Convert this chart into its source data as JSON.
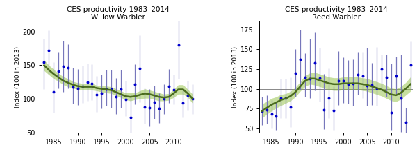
{
  "willow": {
    "title_line1": "CES productivity 1983–2014",
    "title_line2": "Willow Warbler",
    "years": [
      1983,
      1984,
      1985,
      1986,
      1987,
      1988,
      1989,
      1990,
      1991,
      1992,
      1993,
      1994,
      1995,
      1996,
      1997,
      1998,
      1999,
      2000,
      2001,
      2002,
      2003,
      2004,
      2005,
      2006,
      2007,
      2008,
      2009,
      2010,
      2011,
      2012,
      2013,
      2014
    ],
    "index": [
      155,
      172,
      110,
      141,
      148,
      146,
      118,
      116,
      119,
      125,
      123,
      106,
      108,
      115,
      115,
      103,
      115,
      99,
      72,
      122,
      145,
      88,
      87,
      95,
      86,
      100,
      119,
      114,
      180,
      94,
      105,
      100
    ],
    "err_lo": [
      40,
      35,
      30,
      25,
      38,
      30,
      25,
      25,
      25,
      28,
      25,
      25,
      22,
      25,
      28,
      25,
      28,
      25,
      30,
      30,
      50,
      25,
      28,
      25,
      22,
      22,
      25,
      22,
      50,
      22,
      22,
      22
    ],
    "err_hi": [
      35,
      30,
      45,
      28,
      38,
      35,
      28,
      28,
      30,
      28,
      28,
      28,
      28,
      28,
      28,
      28,
      28,
      28,
      35,
      30,
      50,
      28,
      28,
      25,
      22,
      22,
      25,
      22,
      50,
      22,
      22,
      22
    ],
    "smooth": [
      150,
      143,
      137,
      132,
      127,
      124,
      121,
      119,
      118,
      118,
      118,
      116,
      115,
      114,
      113,
      110,
      107,
      104,
      103,
      104,
      106,
      108,
      107,
      105,
      103,
      102,
      103,
      108,
      114,
      114,
      108,
      100
    ],
    "smooth_lo": [
      142,
      136,
      130,
      126,
      121,
      118,
      116,
      114,
      113,
      113,
      113,
      112,
      110,
      109,
      108,
      105,
      102,
      99,
      97,
      99,
      100,
      101,
      101,
      99,
      97,
      97,
      98,
      102,
      107,
      107,
      102,
      93
    ],
    "smooth_hi": [
      158,
      150,
      144,
      138,
      133,
      130,
      126,
      124,
      123,
      123,
      123,
      120,
      120,
      119,
      118,
      115,
      112,
      109,
      109,
      109,
      112,
      115,
      113,
      111,
      109,
      107,
      108,
      114,
      121,
      121,
      114,
      107
    ],
    "ylim": [
      50,
      215
    ],
    "yticks": [
      50,
      100,
      150,
      200
    ],
    "ylabel": "Index (100 in 2013)"
  },
  "reed": {
    "title_line1": "CES productivity 1983–2014",
    "title_line2": "Reed Warbler",
    "years": [
      1983,
      1984,
      1985,
      1986,
      1987,
      1988,
      1989,
      1990,
      1991,
      1992,
      1993,
      1994,
      1995,
      1996,
      1997,
      1998,
      1999,
      2000,
      2001,
      2002,
      2003,
      2004,
      2005,
      2006,
      2007,
      2008,
      2009,
      2010,
      2011,
      2012,
      2013,
      2014
    ],
    "index": [
      72,
      74,
      68,
      66,
      88,
      88,
      77,
      120,
      137,
      115,
      113,
      133,
      114,
      74,
      88,
      73,
      110,
      110,
      106,
      107,
      118,
      116,
      104,
      105,
      101,
      125,
      115,
      70,
      116,
      88,
      58,
      130
    ],
    "err_lo": [
      18,
      18,
      18,
      18,
      25,
      25,
      25,
      30,
      38,
      25,
      25,
      35,
      30,
      25,
      25,
      25,
      30,
      28,
      25,
      28,
      25,
      28,
      25,
      25,
      22,
      28,
      25,
      22,
      22,
      42,
      22,
      30
    ],
    "err_hi": [
      18,
      18,
      18,
      18,
      25,
      25,
      38,
      30,
      38,
      30,
      50,
      38,
      38,
      45,
      38,
      30,
      38,
      30,
      30,
      30,
      28,
      30,
      48,
      28,
      52,
      18,
      28,
      62,
      25,
      55,
      18,
      30
    ],
    "smooth": [
      72,
      76,
      80,
      83,
      86,
      88,
      91,
      96,
      103,
      110,
      113,
      113,
      111,
      109,
      107,
      106,
      106,
      107,
      107,
      107,
      107,
      106,
      105,
      103,
      101,
      99,
      96,
      93,
      92,
      95,
      100,
      106
    ],
    "smooth_lo": [
      63,
      68,
      72,
      76,
      79,
      82,
      85,
      90,
      97,
      103,
      106,
      105,
      103,
      101,
      99,
      98,
      98,
      99,
      99,
      99,
      99,
      98,
      97,
      95,
      93,
      91,
      88,
      85,
      84,
      87,
      92,
      97
    ],
    "smooth_hi": [
      81,
      84,
      88,
      90,
      93,
      94,
      97,
      102,
      109,
      117,
      120,
      121,
      119,
      117,
      115,
      114,
      114,
      115,
      115,
      115,
      115,
      114,
      113,
      111,
      109,
      107,
      104,
      101,
      100,
      103,
      108,
      115
    ],
    "ylim": [
      45,
      185
    ],
    "yticks": [
      50,
      75,
      100,
      125,
      150,
      175
    ],
    "ylabel": "Index (100 in 2013)"
  },
  "smooth_color": "#4a6b1e",
  "smooth_fill": "#90c040",
  "point_color": "#0000cc",
  "err_color": "#7777bb",
  "hline_color": "#888888",
  "bg_color": "#ffffff",
  "xlim": [
    1982.5,
    2014.5
  ],
  "xticks": [
    1985,
    1990,
    1995,
    2000,
    2005,
    2010
  ]
}
